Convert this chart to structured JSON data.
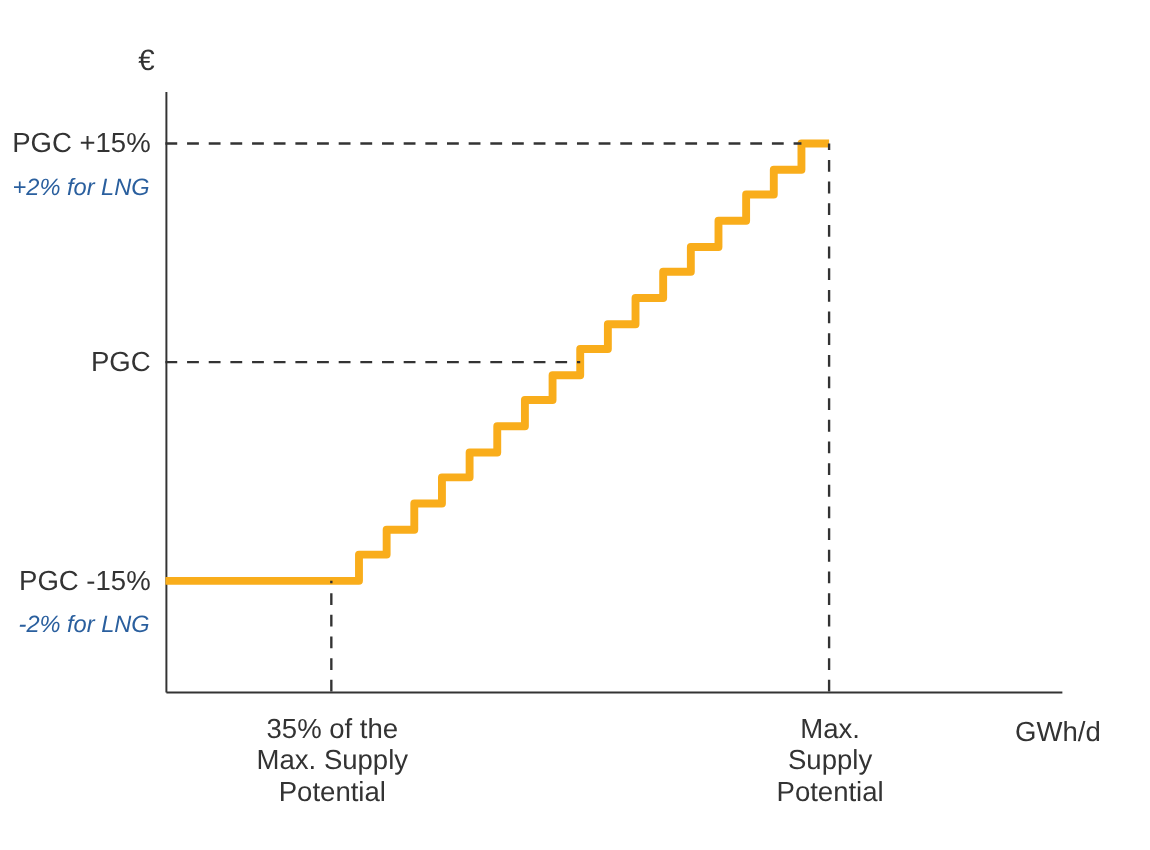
{
  "chart_data": {
    "type": "step",
    "ylabel": "€",
    "categories": [
      null,
      null,
      null,
      null,
      null,
      null,
      "35% of the\nMax. Supply\nPotential",
      null,
      null,
      null,
      null,
      null,
      null,
      null,
      null,
      null,
      null,
      null,
      null,
      null,
      null,
      null,
      null,
      null,
      "Max.\nSupply\nPotential"
    ],
    "series": [
      {
        "color": "#f9ad1b",
        "values": [
          -15,
          -15,
          -15,
          -15,
          -15,
          -15,
          -15,
          -13.2,
          -11.5,
          -9.7,
          -7.9,
          -6.2,
          -4.4,
          -2.6,
          -0.9,
          0.9,
          2.6,
          4.4,
          6.2,
          7.9,
          9.7,
          11.5,
          13.2,
          15,
          15
        ]
      }
    ],
    "ylim": [
      -22.6,
      18.6
    ],
    "yticks": [
      {
        "value": -15,
        "label": "PGC -15%"
      },
      {
        "value": 0,
        "label": "PGC"
      },
      {
        "value": 15,
        "label": "PGC +15%"
      }
    ],
    "ref_lines": [
      {
        "axis": "y",
        "value": 15,
        "line_style": "dashed",
        "color": "#333333"
      },
      {
        "axis": "y",
        "value": 0,
        "line_style": "dashed",
        "color": "#333333"
      },
      {
        "axis": "x",
        "value": "35% of the\nMax. Supply\nPotential",
        "line_style": "dashed",
        "color": "#333333"
      },
      {
        "axis": "x",
        "value": "Max.\nSupply\nPotential",
        "line_style": "dashed",
        "color": "#333333"
      }
    ],
    "annotations": [
      "+2% for LNG",
      "-2% for LNG",
      "GWh/d"
    ],
    "grid": false,
    "marker": "none",
    "line_style": "solid"
  }
}
